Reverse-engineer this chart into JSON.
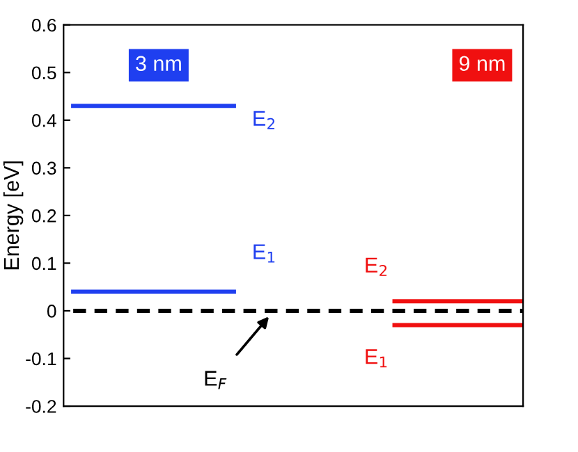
{
  "chart_data": {
    "type": "line",
    "ylabel": "Energy [eV]",
    "ylim": [
      -0.2,
      0.6
    ],
    "yticks": [
      -0.2,
      -0.1,
      0,
      0.1,
      0.2,
      0.3,
      0.4,
      0.5,
      0.6
    ],
    "tick_labels": "y",
    "grid": false,
    "legend": false,
    "marker": "none",
    "categories": [
      null,
      null,
      null,
      null,
      null,
      null,
      null,
      null,
      null,
      null,
      null,
      null,
      null,
      null,
      null
    ],
    "series": [
      {
        "color": "#1f3ff0",
        "values": [
          0.43,
          0.43,
          0.43,
          0.43,
          0.43,
          0.43,
          null,
          null,
          null,
          null,
          null,
          null,
          null,
          null,
          null
        ]
      },
      {
        "color": "#1f3ff0",
        "values": [
          0.04,
          0.04,
          0.04,
          0.04,
          0.04,
          0.04,
          null,
          null,
          null,
          null,
          null,
          null,
          null,
          null,
          null
        ]
      },
      {
        "color": "#f01010",
        "values": [
          null,
          null,
          null,
          null,
          null,
          null,
          null,
          null,
          null,
          null,
          0.02,
          0.02,
          0.02,
          0.02,
          0.02
        ]
      },
      {
        "color": "#f01010",
        "values": [
          null,
          null,
          null,
          null,
          null,
          null,
          null,
          null,
          null,
          null,
          -0.03,
          -0.03,
          -0.03,
          -0.03,
          -0.03
        ]
      },
      {
        "color": "#000000",
        "values": [
          0,
          0,
          0,
          0,
          0,
          0,
          0,
          0,
          0,
          0,
          0,
          0,
          0,
          0,
          0
        ],
        "line_style": "dashed"
      }
    ],
    "annotations": [
      "3 nm",
      "9 nm",
      "E$_{2}$",
      "E$_{1}$",
      "E$_{2}$",
      "E$_{1}$",
      "E$_{F}$"
    ]
  }
}
